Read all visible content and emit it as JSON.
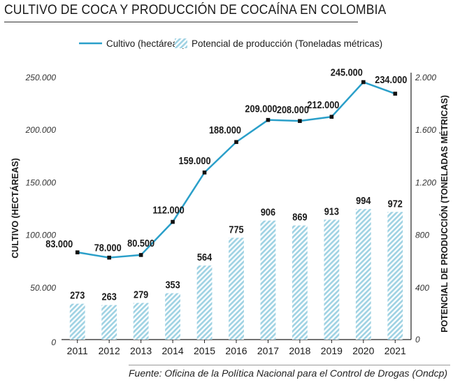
{
  "title": "CULTIVO DE COCA Y PRODUCCIÓN DE COCAÍNA EN COLOMBIA",
  "source": "Fuente: Oficina de la Política Nacional para el Control de Drogas (Ondcp)",
  "colors": {
    "line": "#2a9fc9",
    "bar_stripe": "#9fd2e3",
    "marker": "#111111",
    "text": "#1a1a1a"
  },
  "chart_data": {
    "type": "bar+line",
    "categories": [
      "2011",
      "2012",
      "2013",
      "2014",
      "2015",
      "2016",
      "2017",
      "2018",
      "2019",
      "2020",
      "2021"
    ],
    "series": [
      {
        "name": "Cultivo (hectáreas)",
        "type": "line",
        "axis": "left",
        "values": [
          83000,
          78000,
          80500,
          112000,
          159000,
          188000,
          209000,
          208000,
          212000,
          245000,
          234000
        ],
        "labels": [
          "83.000",
          "78.000",
          "80.500",
          "112.000",
          "159.000",
          "188.000",
          "209.000",
          "208.000",
          "212.000",
          "245.000",
          "234.000"
        ]
      },
      {
        "name": "Potencial de producción (Toneladas métricas)",
        "type": "bar",
        "axis": "right",
        "values": [
          273,
          263,
          279,
          353,
          564,
          775,
          906,
          869,
          913,
          994,
          972
        ],
        "labels": [
          "273",
          "263",
          "279",
          "353",
          "564",
          "775",
          "906",
          "869",
          "913",
          "994",
          "972"
        ]
      }
    ],
    "ylabel": "CULTIVO (HECTÁREAS)",
    "y2label": "POTENCIAL DE PRODUCCIÓN (TONELADAS MÉTRICAS)",
    "ylim": [
      0,
      250000
    ],
    "y2lim": [
      0,
      2000
    ],
    "yticks": [
      0,
      50000,
      100000,
      150000,
      200000,
      250000
    ],
    "ytick_labels": [
      "0",
      "50.000",
      "100.000",
      "150.000",
      "200.000",
      "250.000"
    ],
    "y2ticks": [
      0,
      400,
      800,
      1200,
      1600,
      2000
    ],
    "y2tick_labels": [
      "0",
      "400",
      "800",
      "1.200",
      "1.600",
      "2.000"
    ],
    "legend": "top"
  }
}
